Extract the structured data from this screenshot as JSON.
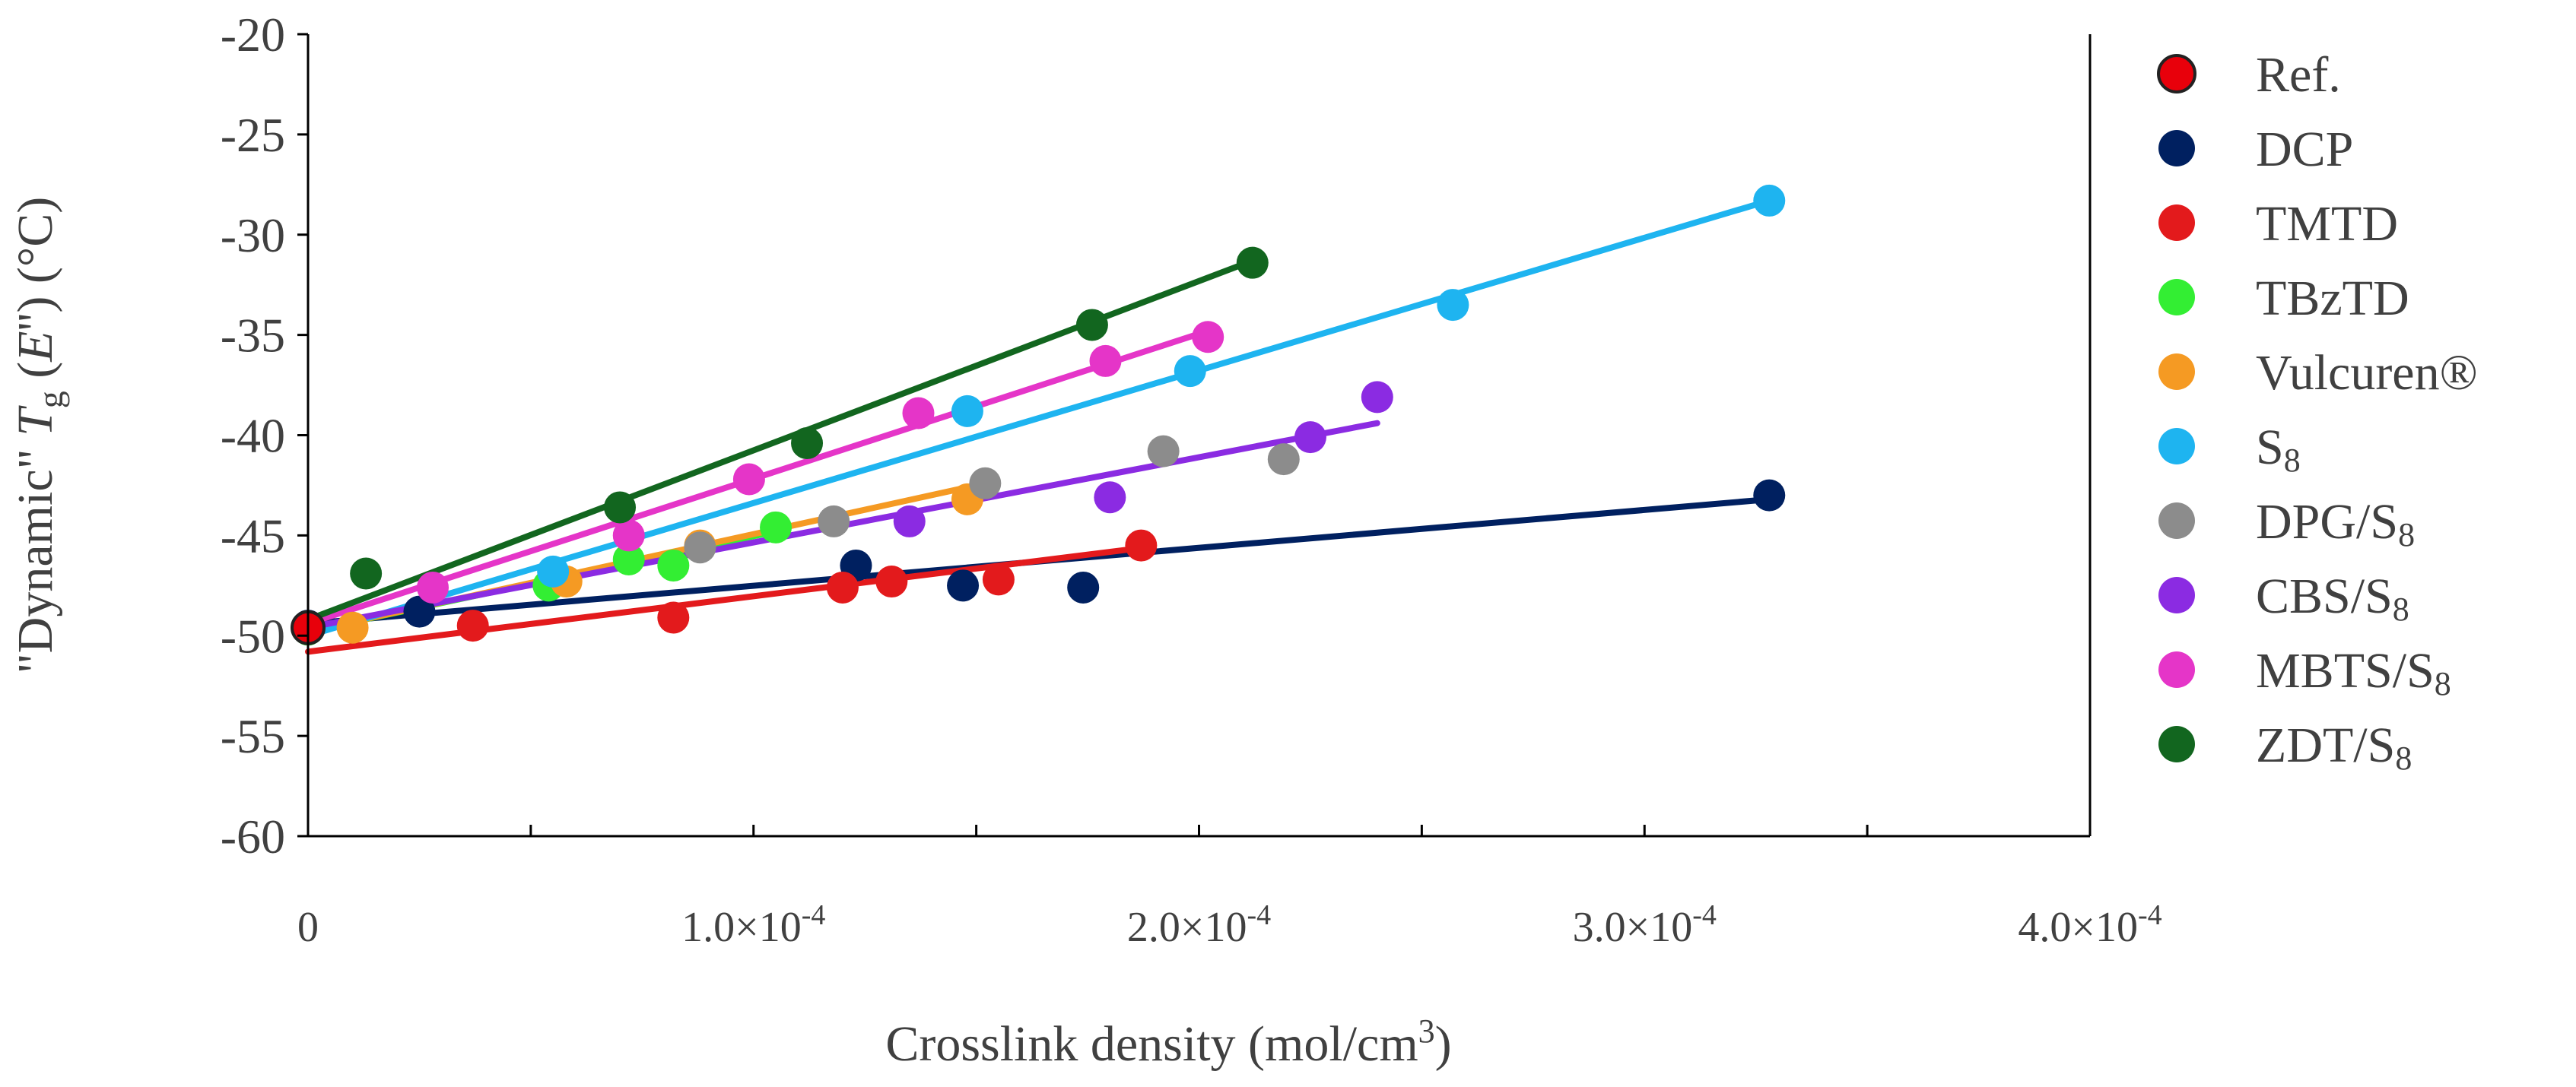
{
  "chart_data": {
    "type": "scatter",
    "title": "",
    "ylabel": {
      "quote_open": "\"",
      "word": "Dynamic",
      "quote_close": "\" ",
      "T": "T",
      "sub": "g",
      "paren_open": " (",
      "E": "E",
      "prime": "''",
      "paren_close": ") (°C)"
    },
    "xlabel": {
      "text": "Crosslink density (mol/cm",
      "sup": "3",
      "close": ")"
    },
    "xlim": [
      0,
      0.0004
    ],
    "ylim": [
      -60,
      -20
    ],
    "x_ticks": [
      {
        "value": 0,
        "label": "0",
        "exp": ""
      },
      {
        "value": 0.0001,
        "label": "1.0×10",
        "exp": "-4"
      },
      {
        "value": 0.0002,
        "label": "2.0×10",
        "exp": "-4"
      },
      {
        "value": 0.0003,
        "label": "3.0×10",
        "exp": "-4"
      },
      {
        "value": 0.0004,
        "label": "4.0×10",
        "exp": "-4"
      }
    ],
    "y_ticks": [
      {
        "value": -20,
        "label": "-20"
      },
      {
        "value": -25,
        "label": "-25"
      },
      {
        "value": -30,
        "label": "-30"
      },
      {
        "value": -35,
        "label": "-35"
      },
      {
        "value": -40,
        "label": "-40"
      },
      {
        "value": -45,
        "label": "-45"
      },
      {
        "value": -50,
        "label": "-50"
      },
      {
        "value": -55,
        "label": "-55"
      },
      {
        "value": -60,
        "label": "-60"
      }
    ],
    "grid": false,
    "legend_position": "right",
    "series": [
      {
        "name": "DCP",
        "label": "DCP",
        "sub": "",
        "color": "#002060",
        "line_color": "#002060",
        "x": [
          0,
          2.5e-05,
          0.000123,
          0.000147,
          0.000174,
          0.000328
        ],
        "y": [
          -49.5,
          -48.8,
          -46.5,
          -47.5,
          -47.6,
          -43.0
        ],
        "fit": [
          [
            0,
            -49.4
          ],
          [
            0.000328,
            -43.2
          ]
        ]
      },
      {
        "name": "TMTD",
        "label": "TMTD",
        "sub": "",
        "color": "#E31A1C",
        "line_color": "#E31A1C",
        "x": [
          0,
          3.7e-05,
          8.2e-05,
          0.00012,
          0.000131,
          0.000155,
          0.000187
        ],
        "y": [
          -49.6,
          -49.5,
          -49.1,
          -47.6,
          -47.3,
          -47.2,
          -45.5
        ],
        "fit": [
          [
            0,
            -50.8
          ],
          [
            0.000188,
            -45.6
          ]
        ]
      },
      {
        "name": "TBzTD",
        "label": "TBzTD",
        "sub": "",
        "color": "#33EE33",
        "line_color": "#33EE33",
        "x": [
          0,
          5.4e-05,
          7.2e-05,
          8.2e-05,
          0.000105
        ],
        "y": [
          -49.7,
          -47.5,
          -46.2,
          -46.5,
          -44.6
        ],
        "fit": [
          [
            0,
            -49.8
          ],
          [
            0.000105,
            -44.8
          ]
        ]
      },
      {
        "name": "Vulcuren",
        "label": "Vulcuren®",
        "sub": "",
        "color": "#F59A23",
        "line_color": "#F59A23",
        "x": [
          1e-05,
          5.8e-05,
          8.8e-05,
          0.000148
        ],
        "y": [
          -49.6,
          -47.3,
          -45.5,
          -43.2
        ],
        "fit": [
          [
            0,
            -49.8
          ],
          [
            0.000148,
            -42.6
          ]
        ]
      },
      {
        "name": "S8",
        "label": "S",
        "sub": "8",
        "color": "#1EB4F0",
        "line_color": "#1EB4F0",
        "x": [
          0,
          5.5e-05,
          0.000148,
          0.000198,
          0.000257,
          0.000328
        ],
        "y": [
          -49.6,
          -46.8,
          -38.8,
          -36.8,
          -33.5,
          -28.3
        ],
        "fit": [
          [
            0,
            -50.0
          ],
          [
            0.000328,
            -28.3
          ]
        ]
      },
      {
        "name": "DPG/S8",
        "label": "DPG/S",
        "sub": "8",
        "color": "#8C8C8C",
        "line_color": "#F59A23",
        "x": [
          8.8e-05,
          0.000118,
          0.000152,
          0.000192,
          0.000219
        ],
        "y": [
          -45.6,
          -44.3,
          -42.4,
          -40.8,
          -41.2
        ],
        "fit": null
      },
      {
        "name": "CBS/S8",
        "label": "CBS/S",
        "sub": "8",
        "color": "#8B2BE2",
        "line_color": "#8B2BE2",
        "x": [
          0,
          0.000135,
          0.00018,
          0.000225,
          0.00024
        ],
        "y": [
          -49.6,
          -44.3,
          -43.1,
          -40.1,
          -38.1
        ],
        "fit": [
          [
            0,
            -49.6
          ],
          [
            0.00024,
            -39.4
          ]
        ]
      },
      {
        "name": "MBTS/S8",
        "label": "MBTS/S",
        "sub": "8",
        "color": "#E535C8",
        "line_color": "#E535C8",
        "x": [
          0,
          2.8e-05,
          7.2e-05,
          9.9e-05,
          0.000137,
          0.000179,
          0.000202
        ],
        "y": [
          -49.6,
          -47.6,
          -45.0,
          -42.2,
          -38.9,
          -36.3,
          -35.1
        ],
        "fit": [
          [
            0,
            -49.4
          ],
          [
            0.000202,
            -34.8
          ]
        ]
      },
      {
        "name": "ZDT/S8",
        "label": "ZDT/S",
        "sub": "8",
        "color": "#12661F",
        "line_color": "#12661F",
        "x": [
          1.3e-05,
          7e-05,
          0.000112,
          0.000176,
          0.000212
        ],
        "y": [
          -46.9,
          -43.6,
          -40.4,
          -34.5,
          -31.4
        ],
        "fit": [
          [
            0,
            -49.2
          ],
          [
            0.000212,
            -31.3
          ]
        ]
      },
      {
        "name": "Ref.",
        "label": "Ref.",
        "sub": "",
        "color": "#E8000B",
        "stroke": "#222222",
        "line_color": "#E8000B",
        "x": [
          0
        ],
        "y": [
          -49.6
        ],
        "fit": null
      }
    ],
    "legend_order": [
      "Ref.",
      "DCP",
      "TMTD",
      "TBzTD",
      "Vulcuren",
      "S8",
      "DPG/S8",
      "CBS/S8",
      "MBTS/S8",
      "ZDT/S8"
    ]
  }
}
